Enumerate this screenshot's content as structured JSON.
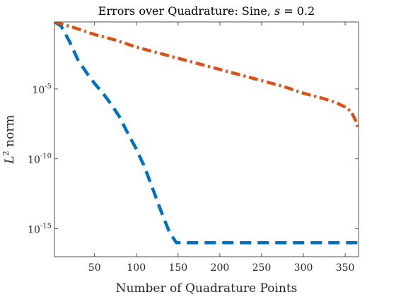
{
  "chart_data": {
    "type": "line",
    "title": "Errors over Quadrature: Sine, s = 0.2",
    "title_parts": {
      "prefix": "Errors over Quadrature: Sine, ",
      "variable": "s",
      "suffix": " = 0.2"
    },
    "xlabel": "Number of Quadrature Points",
    "ylabel": "L² norm",
    "ylabel_parts": {
      "base": "L",
      "superscript": "2",
      "rest": " norm"
    },
    "xlim": [
      2,
      366
    ],
    "ylim_exponent": [
      -17,
      -0.2
    ],
    "y_scale": "log",
    "x_ticks": [
      50,
      100,
      150,
      200,
      250,
      300,
      350
    ],
    "y_ticks": [
      {
        "exponent": -15,
        "base": "10",
        "sup": "-15"
      },
      {
        "exponent": -10,
        "base": "10",
        "sup": "-10"
      },
      {
        "exponent": -5,
        "base": "10",
        "sup": "-5"
      }
    ],
    "grid": false,
    "series": [
      {
        "color": "#0072BD",
        "dash": "dashed",
        "x": [
          2,
          10,
          20,
          30,
          40,
          50,
          60,
          70,
          80,
          90,
          100,
          110,
          120,
          130,
          140,
          148,
          150,
          200,
          250,
          300,
          350,
          366
        ],
        "y_exponent": [
          -0.2,
          -0.5,
          -1.6,
          -2.9,
          -3.8,
          -4.6,
          -5.3,
          -6.1,
          -7.0,
          -8.2,
          -9.3,
          -10.6,
          -12.2,
          -13.8,
          -15.3,
          -16.0,
          -16.0,
          -16.0,
          -16.0,
          -16.0,
          -16.0,
          -16.0
        ]
      },
      {
        "color": "#D95319",
        "dash": "dashdot",
        "x": [
          2,
          25,
          50,
          75,
          100,
          125,
          150,
          175,
          200,
          225,
          250,
          275,
          300,
          325,
          340,
          350,
          357,
          362,
          366
        ],
        "y_exponent": [
          -0.2,
          -0.6,
          -1.1,
          -1.5,
          -2.0,
          -2.4,
          -2.8,
          -3.2,
          -3.6,
          -4.0,
          -4.4,
          -4.8,
          -5.3,
          -5.7,
          -6.0,
          -6.3,
          -6.6,
          -7.2,
          -7.9
        ]
      }
    ]
  }
}
